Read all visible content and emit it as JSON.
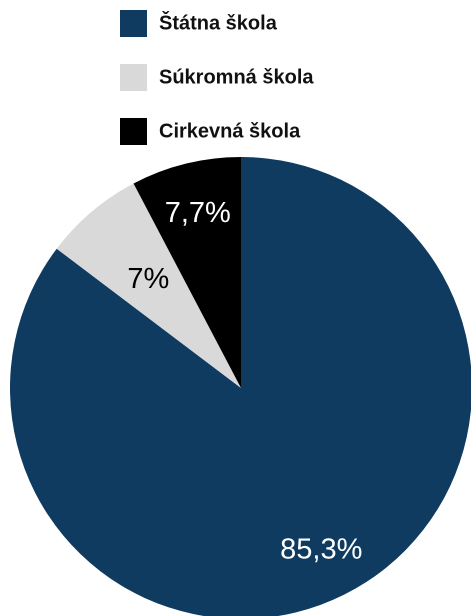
{
  "chart_data": {
    "type": "pie",
    "title": "",
    "legend_position": "top",
    "categories": [
      "Štátna škola",
      "Súkromná škola",
      "Cirkevná škola"
    ],
    "values": [
      85.3,
      7,
      7.7
    ],
    "labels": [
      "85,3%",
      "7%",
      "7,7%"
    ],
    "colors": [
      "#0f3b60",
      "#d9d9d9",
      "#000000"
    ],
    "label_colors": [
      "#ffffff",
      "#000000",
      "#ffffff"
    ],
    "start_angle_deg": 0,
    "direction": "clockwise"
  }
}
